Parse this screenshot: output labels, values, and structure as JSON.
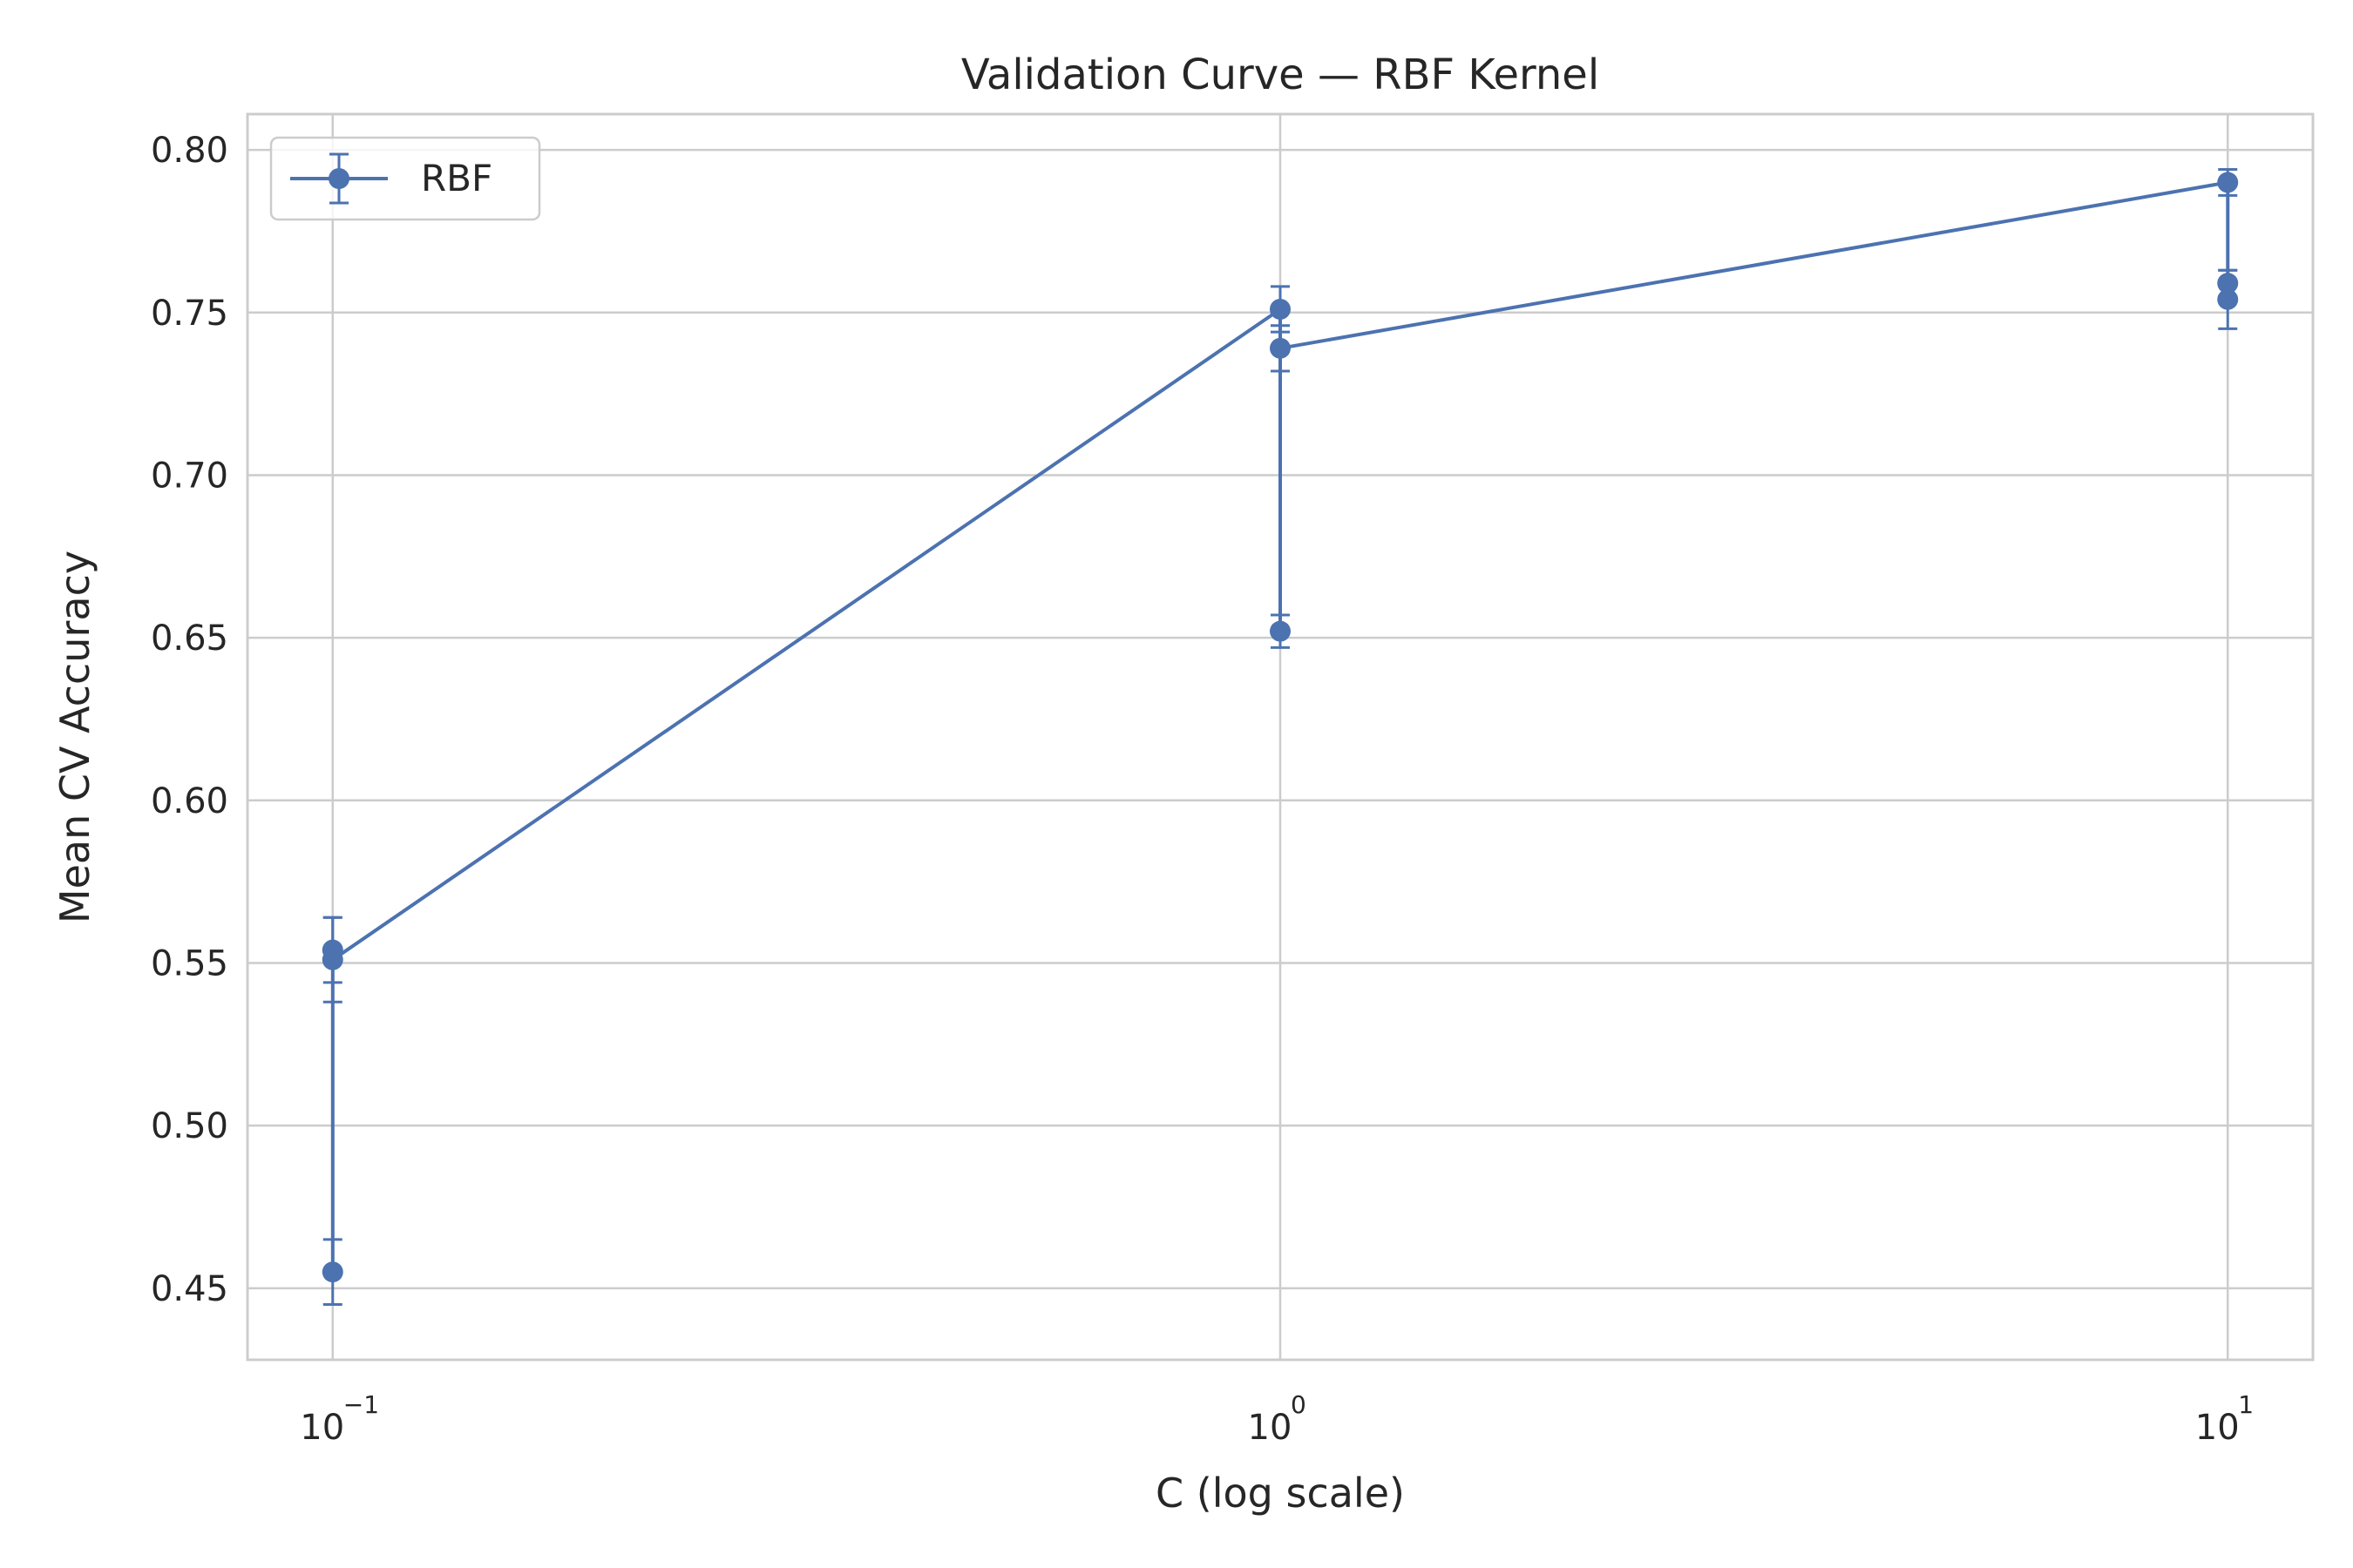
{
  "chart_data": {
    "type": "line",
    "title": "Validation Curve — RBF Kernel",
    "xlabel": "C (log scale)",
    "ylabel": "Mean CV Accuracy",
    "xscale": "log",
    "xlim": [
      0.0813,
      12.3
    ],
    "ylim": [
      0.428,
      0.811
    ],
    "x_ticks": [
      {
        "value": 0.1,
        "base": "10",
        "exp": "−1"
      },
      {
        "value": 1,
        "base": "10",
        "exp": "0"
      },
      {
        "value": 10,
        "base": "10",
        "exp": "1"
      }
    ],
    "y_ticks": [
      "0.45",
      "0.50",
      "0.55",
      "0.60",
      "0.65",
      "0.70",
      "0.75",
      "0.80"
    ],
    "grid": true,
    "legend": {
      "position": "top-left"
    },
    "colors": {
      "series": "#4c72b0",
      "grid": "#cccccc",
      "spine": "#cccccc",
      "text": "#262626"
    },
    "series": [
      {
        "name": "RBF",
        "x": [
          0.1,
          0.1,
          0.1,
          1,
          1,
          1,
          10,
          10,
          10
        ],
        "y": [
          0.455,
          0.554,
          0.551,
          0.751,
          0.652,
          0.739,
          0.79,
          0.759,
          0.754
        ],
        "err": [
          0.01,
          0.01,
          0.013,
          0.007,
          0.005,
          0.007,
          0.004,
          0.004,
          0.009
        ]
      }
    ]
  }
}
